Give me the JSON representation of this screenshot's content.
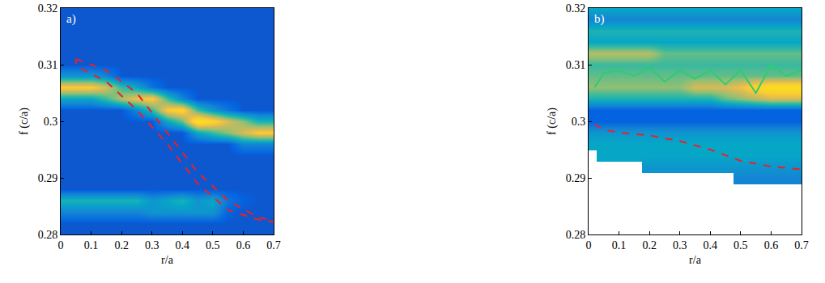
{
  "chart_data": [
    {
      "type": "heatmap",
      "panel_label": "a)",
      "x_label": "r/a",
      "y_label": "f (c/a)",
      "xlim": [
        0,
        0.7
      ],
      "xticks": [
        0,
        0.1,
        0.2,
        0.3,
        0.4,
        0.5,
        0.6,
        0.7
      ],
      "ylim": [
        0.28,
        0.32
      ],
      "yticks": [
        0.28,
        0.29,
        0.3,
        0.31,
        0.32
      ],
      "zlim": [
        0,
        1
      ],
      "x": [
        0,
        0.05,
        0.1,
        0.15,
        0.2,
        0.25,
        0.3,
        0.35,
        0.4,
        0.45,
        0.5,
        0.55,
        0.6,
        0.65,
        0.7
      ],
      "y": [
        0.28,
        0.282,
        0.284,
        0.286,
        0.288,
        0.29,
        0.292,
        0.294,
        0.296,
        0.298,
        0.3,
        0.302,
        0.304,
        0.306,
        0.308,
        0.31,
        0.312,
        0.314,
        0.316,
        0.318,
        0.32
      ],
      "z": [
        [
          0.08,
          0.08,
          0.08,
          0.08,
          0.08,
          0.08,
          0.08,
          0.08,
          0.08,
          0.08,
          0.08,
          0.08,
          0.08,
          0.08,
          0.08
        ],
        [
          0.08,
          0.08,
          0.08,
          0.08,
          0.08,
          0.08,
          0.08,
          0.08,
          0.08,
          0.08,
          0.08,
          0.08,
          0.08,
          0.08,
          0.08
        ],
        [
          0.2,
          0.2,
          0.2,
          0.2,
          0.2,
          0.2,
          0.25,
          0.25,
          0.25,
          0.25,
          0.25,
          0.1,
          0.08,
          0.08,
          0.08
        ],
        [
          0.35,
          0.35,
          0.35,
          0.35,
          0.35,
          0.35,
          0.25,
          0.3,
          0.35,
          0.25,
          0.3,
          0.15,
          0.1,
          0.08,
          0.08
        ],
        [
          0.08,
          0.08,
          0.08,
          0.08,
          0.08,
          0.08,
          0.08,
          0.08,
          0.08,
          0.08,
          0.08,
          0.08,
          0.08,
          0.08,
          0.08
        ],
        [
          0.08,
          0.08,
          0.08,
          0.08,
          0.08,
          0.08,
          0.08,
          0.08,
          0.08,
          0.08,
          0.08,
          0.08,
          0.08,
          0.08,
          0.08
        ],
        [
          0.08,
          0.08,
          0.08,
          0.08,
          0.08,
          0.08,
          0.08,
          0.08,
          0.08,
          0.08,
          0.08,
          0.08,
          0.08,
          0.08,
          0.08
        ],
        [
          0.08,
          0.08,
          0.08,
          0.08,
          0.08,
          0.08,
          0.08,
          0.08,
          0.08,
          0.08,
          0.08,
          0.08,
          0.08,
          0.08,
          0.08
        ],
        [
          0.08,
          0.08,
          0.08,
          0.08,
          0.08,
          0.08,
          0.08,
          0.08,
          0.08,
          0.08,
          0.08,
          0.08,
          0.2,
          0.2,
          0.2
        ],
        [
          0.08,
          0.08,
          0.08,
          0.08,
          0.08,
          0.08,
          0.08,
          0.08,
          0.08,
          0.3,
          0.4,
          0.5,
          0.6,
          0.7,
          0.7
        ],
        [
          0.08,
          0.08,
          0.08,
          0.08,
          0.08,
          0.08,
          0.08,
          0.3,
          0.45,
          0.85,
          0.75,
          0.6,
          0.5,
          0.35,
          0.35
        ],
        [
          0.08,
          0.08,
          0.08,
          0.08,
          0.08,
          0.2,
          0.4,
          0.7,
          0.75,
          0.4,
          0.25,
          0.15,
          0.08,
          0.08,
          0.08
        ],
        [
          0.3,
          0.3,
          0.3,
          0.4,
          0.55,
          0.65,
          0.7,
          0.4,
          0.2,
          0.08,
          0.08,
          0.08,
          0.08,
          0.08,
          0.08
        ],
        [
          0.7,
          0.7,
          0.7,
          0.6,
          0.4,
          0.3,
          0.15,
          0.08,
          0.08,
          0.08,
          0.08,
          0.08,
          0.08,
          0.08,
          0.08
        ],
        [
          0.25,
          0.25,
          0.25,
          0.2,
          0.08,
          0.08,
          0.08,
          0.08,
          0.08,
          0.08,
          0.08,
          0.08,
          0.08,
          0.08,
          0.08
        ],
        [
          0.08,
          0.08,
          0.08,
          0.08,
          0.08,
          0.08,
          0.08,
          0.08,
          0.08,
          0.08,
          0.08,
          0.08,
          0.08,
          0.08,
          0.08
        ],
        [
          0.08,
          0.08,
          0.08,
          0.08,
          0.08,
          0.08,
          0.08,
          0.08,
          0.08,
          0.08,
          0.08,
          0.08,
          0.08,
          0.08,
          0.08
        ],
        [
          0.08,
          0.08,
          0.08,
          0.08,
          0.08,
          0.08,
          0.08,
          0.08,
          0.08,
          0.08,
          0.08,
          0.08,
          0.08,
          0.08,
          0.08
        ],
        [
          0.08,
          0.08,
          0.08,
          0.08,
          0.08,
          0.08,
          0.08,
          0.08,
          0.08,
          0.08,
          0.08,
          0.08,
          0.08,
          0.08,
          0.08
        ],
        [
          0.08,
          0.08,
          0.08,
          0.08,
          0.08,
          0.08,
          0.08,
          0.08,
          0.08,
          0.08,
          0.08,
          0.08,
          0.08,
          0.08,
          0.08
        ],
        [
          0.08,
          0.08,
          0.08,
          0.08,
          0.08,
          0.08,
          0.08,
          0.08,
          0.08,
          0.08,
          0.08,
          0.08,
          0.08,
          0.08,
          0.08
        ]
      ],
      "series": [
        {
          "color": "#e8212a",
          "line_style": "dash",
          "x": [
            0.05,
            0.15,
            0.25,
            0.35,
            0.45,
            0.55,
            0.65,
            0.7,
            0.7,
            0.65,
            0.55,
            0.45,
            0.35,
            0.25,
            0.15,
            0.05,
            0.05
          ],
          "y": [
            0.311,
            0.309,
            0.305,
            0.298,
            0.291,
            0.286,
            0.283,
            0.2825,
            0.2822,
            0.2826,
            0.2843,
            0.289,
            0.296,
            0.302,
            0.307,
            0.3098,
            0.311
          ]
        }
      ]
    },
    {
      "type": "heatmap",
      "panel_label": "b)",
      "x_label": "r/a",
      "y_label": "f (c/a)",
      "xlim": [
        0,
        0.7
      ],
      "xticks": [
        0,
        0.1,
        0.2,
        0.3,
        0.4,
        0.5,
        0.6,
        0.7
      ],
      "ylim": [
        0.28,
        0.32
      ],
      "yticks": [
        0.28,
        0.29,
        0.3,
        0.31,
        0.32
      ],
      "zlim": [
        0,
        1
      ],
      "x": [
        0,
        0.05,
        0.1,
        0.15,
        0.2,
        0.25,
        0.3,
        0.35,
        0.4,
        0.45,
        0.5,
        0.55,
        0.6,
        0.65,
        0.7
      ],
      "y": [
        0.28,
        0.282,
        0.284,
        0.286,
        0.288,
        0.29,
        0.292,
        0.294,
        0.296,
        0.298,
        0.3,
        0.302,
        0.304,
        0.306,
        0.308,
        0.31,
        0.312,
        0.314,
        0.316,
        0.318,
        0.32
      ],
      "z": [
        [
          null,
          null,
          null,
          null,
          null,
          null,
          null,
          null,
          null,
          null,
          null,
          null,
          null,
          null,
          null
        ],
        [
          null,
          null,
          null,
          null,
          null,
          null,
          null,
          null,
          null,
          null,
          null,
          null,
          null,
          null,
          null
        ],
        [
          null,
          null,
          null,
          null,
          null,
          null,
          null,
          null,
          null,
          null,
          null,
          null,
          null,
          null,
          null
        ],
        [
          null,
          null,
          null,
          null,
          null,
          null,
          null,
          null,
          null,
          null,
          null,
          null,
          null,
          null,
          null
        ],
        [
          null,
          null,
          null,
          null,
          null,
          null,
          null,
          null,
          null,
          null,
          null,
          null,
          null,
          null,
          null
        ],
        [
          null,
          null,
          null,
          null,
          null,
          null,
          null,
          null,
          null,
          null,
          0.2,
          0.2,
          0.2,
          0.2,
          0.2
        ],
        [
          null,
          null,
          null,
          null,
          0.25,
          0.25,
          0.25,
          0.25,
          0.25,
          0.25,
          0.25,
          0.25,
          0.25,
          0.25,
          0.25
        ],
        [
          null,
          0.3,
          0.3,
          0.3,
          0.3,
          0.3,
          0.3,
          0.3,
          0.3,
          0.3,
          0.3,
          0.3,
          0.3,
          0.3,
          0.3
        ],
        [
          0.3,
          0.3,
          0.3,
          0.3,
          0.3,
          0.3,
          0.3,
          0.3,
          0.3,
          0.3,
          0.3,
          0.3,
          0.3,
          0.3,
          0.3
        ],
        [
          0.25,
          0.25,
          0.25,
          0.25,
          0.25,
          0.25,
          0.25,
          0.25,
          0.25,
          0.25,
          0.25,
          0.25,
          0.25,
          0.25,
          0.25
        ],
        [
          0.1,
          0.1,
          0.1,
          0.1,
          0.1,
          0.1,
          0.1,
          0.1,
          0.1,
          0.1,
          0.1,
          0.1,
          0.1,
          0.1,
          0.1
        ],
        [
          0.1,
          0.1,
          0.1,
          0.1,
          0.1,
          0.1,
          0.1,
          0.1,
          0.1,
          0.1,
          0.1,
          0.1,
          0.1,
          0.1,
          0.1
        ],
        [
          0.35,
          0.35,
          0.35,
          0.35,
          0.35,
          0.35,
          0.35,
          0.35,
          0.35,
          0.45,
          0.5,
          0.55,
          0.6,
          0.6,
          0.6
        ],
        [
          0.5,
          0.5,
          0.5,
          0.5,
          0.5,
          0.5,
          0.5,
          0.6,
          0.6,
          0.6,
          0.65,
          0.75,
          0.8,
          0.8,
          0.8
        ],
        [
          0.45,
          0.45,
          0.45,
          0.45,
          0.45,
          0.45,
          0.45,
          0.45,
          0.45,
          0.45,
          0.45,
          0.45,
          0.45,
          0.45,
          0.45
        ],
        [
          0.4,
          0.4,
          0.4,
          0.4,
          0.4,
          0.4,
          0.4,
          0.4,
          0.4,
          0.4,
          0.4,
          0.4,
          0.4,
          0.4,
          0.4
        ],
        [
          0.55,
          0.55,
          0.55,
          0.55,
          0.55,
          0.45,
          0.45,
          0.45,
          0.45,
          0.45,
          0.45,
          0.45,
          0.45,
          0.45,
          0.45
        ],
        [
          0.3,
          0.3,
          0.3,
          0.3,
          0.3,
          0.3,
          0.3,
          0.3,
          0.3,
          0.3,
          0.3,
          0.3,
          0.3,
          0.3,
          0.3
        ],
        [
          0.35,
          0.35,
          0.35,
          0.35,
          0.35,
          0.35,
          0.35,
          0.35,
          0.35,
          0.35,
          0.35,
          0.35,
          0.35,
          0.35,
          0.35
        ],
        [
          0.2,
          0.2,
          0.2,
          0.2,
          0.2,
          0.2,
          0.2,
          0.2,
          0.2,
          0.2,
          0.2,
          0.2,
          0.2,
          0.2,
          0.2
        ],
        [
          0.3,
          0.3,
          0.3,
          0.3,
          0.3,
          0.3,
          0.3,
          0.3,
          0.3,
          0.3,
          0.3,
          0.3,
          0.3,
          0.3,
          0.3
        ]
      ],
      "series": [
        {
          "color": "#e8212a",
          "line_style": "dash",
          "x": [
            0.02,
            0.05,
            0.1,
            0.2,
            0.3,
            0.4,
            0.5,
            0.6,
            0.7
          ],
          "y": [
            0.2995,
            0.2985,
            0.298,
            0.2975,
            0.2965,
            0.295,
            0.293,
            0.292,
            0.2915
          ]
        },
        {
          "color": "#2ecc71",
          "line_style": "solid",
          "x": [
            0.02,
            0.05,
            0.1,
            0.15,
            0.2,
            0.25,
            0.3,
            0.35,
            0.4,
            0.45,
            0.5,
            0.55,
            0.6,
            0.65,
            0.7
          ],
          "y": [
            0.306,
            0.3085,
            0.309,
            0.308,
            0.3095,
            0.307,
            0.309,
            0.3075,
            0.309,
            0.3065,
            0.309,
            0.305,
            0.31,
            0.308,
            0.309
          ]
        }
      ]
    }
  ]
}
